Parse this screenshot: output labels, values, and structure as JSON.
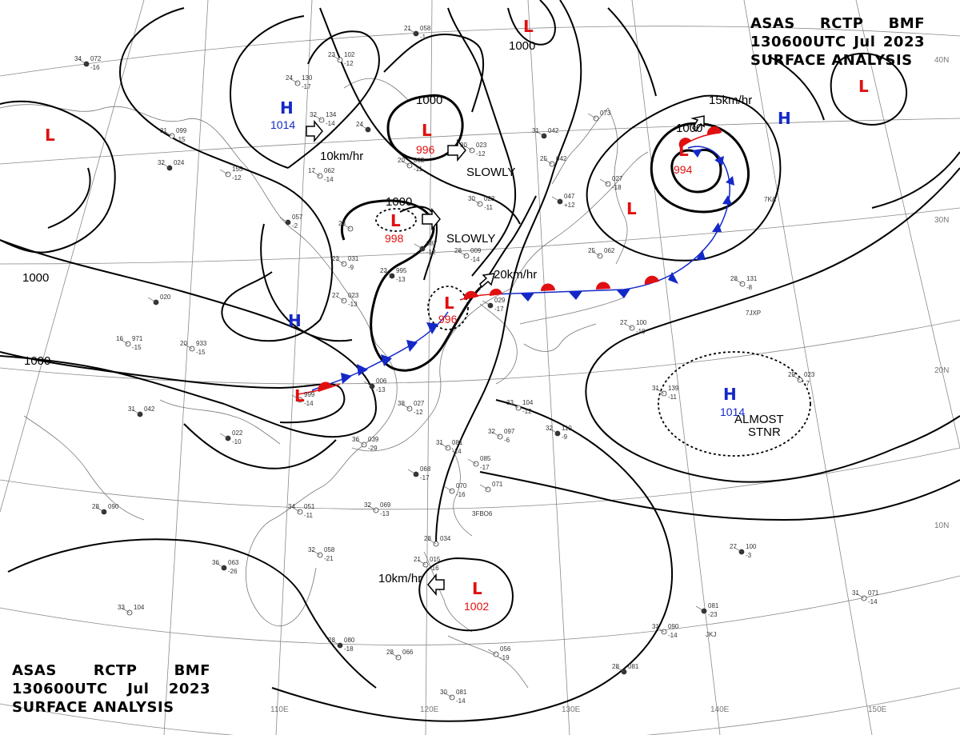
{
  "header": {
    "line1": [
      "ASAS",
      "RCTP",
      "BMF"
    ],
    "line2": [
      "130600UTC",
      "Jul",
      "2023"
    ],
    "line3": "SURFACE ANALYSIS"
  },
  "longitude_labels": [
    "110E",
    "120E",
    "130E",
    "140E",
    "150E"
  ],
  "latitude_labels": [
    "40N",
    "30N",
    "20N",
    "10N"
  ],
  "isobar_labels": [
    "1000",
    "1000",
    "1000",
    "1000",
    "1000"
  ],
  "systems": [
    {
      "type": "L",
      "pressure": "996"
    },
    {
      "type": "L",
      "pressure": "998"
    },
    {
      "type": "L",
      "pressure": "996"
    },
    {
      "type": "L",
      "pressure": "994"
    },
    {
      "type": "L",
      "pressure": "1002"
    },
    {
      "type": "L",
      "pressure": ""
    },
    {
      "type": "L",
      "pressure": ""
    },
    {
      "type": "L",
      "pressure": ""
    },
    {
      "type": "L",
      "pressure": ""
    },
    {
      "type": "L",
      "pressure": ""
    },
    {
      "type": "H",
      "pressure": "1014"
    },
    {
      "type": "H",
      "pressure": ""
    },
    {
      "type": "H",
      "pressure": ""
    },
    {
      "type": "H",
      "pressure": "1014"
    }
  ],
  "motions": [
    "SLOWLY",
    "SLOWLY",
    "20km/hr",
    "15km/hr",
    "10km/hr",
    "10km/hr",
    "ALMOST",
    "STNR"
  ],
  "station_plots": [
    {
      "t": "34",
      "p": "072",
      "d": "-16"
    },
    {
      "t": "23",
      "p": "102",
      "d": "-12"
    },
    {
      "t": "24",
      "p": "130",
      "d": "-17"
    },
    {
      "t": "21",
      "p": "058",
      "d": "-1"
    },
    {
      "t": "31",
      "p": "099",
      "d": "-15"
    },
    {
      "t": "32",
      "p": "134",
      "d": "-14"
    },
    {
      "t": "24",
      "p": "",
      "d": ""
    },
    {
      "t": "30",
      "p": "023",
      "d": "-12"
    },
    {
      "t": "20",
      "p": "002",
      "d": "-11"
    },
    {
      "t": "31",
      "p": "042",
      "d": ""
    },
    {
      "t": "25",
      "p": "042",
      "d": ""
    },
    {
      "t": "",
      "p": "073",
      "d": ""
    },
    {
      "t": "32",
      "p": "024",
      "d": ""
    },
    {
      "t": "",
      "p": "155",
      "d": "-12"
    },
    {
      "t": "17",
      "p": "062",
      "d": "-14"
    },
    {
      "t": "",
      "p": "057",
      "d": "-2"
    },
    {
      "t": "30",
      "p": "023",
      "d": "-11"
    },
    {
      "t": "28",
      "p": "",
      "d": ""
    },
    {
      "t": "",
      "p": "047",
      "d": "+12"
    },
    {
      "t": "",
      "p": "027",
      "d": "-18"
    },
    {
      "t": "23",
      "p": "031",
      "d": "-9"
    },
    {
      "t": "",
      "p": "987",
      "d": "-12"
    },
    {
      "t": "28",
      "p": "009",
      "d": "-14"
    },
    {
      "t": "25",
      "p": "062",
      "d": ""
    },
    {
      "t": "23",
      "p": "995",
      "d": "-13"
    },
    {
      "t": "27",
      "p": "023",
      "d": "-13"
    },
    {
      "t": "28",
      "p": "131",
      "d": "-8"
    },
    {
      "t": "",
      "p": "020",
      "d": ""
    },
    {
      "t": "16",
      "p": "971",
      "d": "-15"
    },
    {
      "t": "20",
      "p": "933",
      "d": "-15"
    },
    {
      "t": "",
      "p": "029",
      "d": "-17"
    },
    {
      "t": "27",
      "p": "100",
      "d": "-10"
    },
    {
      "t": "",
      "p": "999",
      "d": "-14"
    },
    {
      "t": "",
      "p": "006",
      "d": "-13"
    },
    {
      "t": "31",
      "p": "139",
      "d": "-11"
    },
    {
      "t": "29",
      "p": "023",
      "d": "-7"
    },
    {
      "t": "31",
      "p": "042",
      "d": ""
    },
    {
      "t": "38",
      "p": "027",
      "d": "-12"
    },
    {
      "t": "33",
      "p": "104",
      "d": "-12"
    },
    {
      "t": "",
      "p": "022",
      "d": "-10"
    },
    {
      "t": "36",
      "p": "039",
      "d": "-29"
    },
    {
      "t": "32",
      "p": "097",
      "d": "-6"
    },
    {
      "t": "32",
      "p": "110",
      "d": "-9"
    },
    {
      "t": "31",
      "p": "081",
      "d": "-14"
    },
    {
      "t": "",
      "p": "085",
      "d": "-17"
    },
    {
      "t": "",
      "p": "068",
      "d": "-17"
    },
    {
      "t": "",
      "p": "070",
      "d": "-16"
    },
    {
      "t": "",
      "p": "071",
      "d": ""
    },
    {
      "t": "28",
      "p": "090",
      "d": ""
    },
    {
      "t": "34",
      "p": "051",
      "d": "-11"
    },
    {
      "t": "32",
      "p": "069",
      "d": "-13"
    },
    {
      "t": "36",
      "p": "063",
      "d": "-26"
    },
    {
      "t": "32",
      "p": "058",
      "d": "-21"
    },
    {
      "t": "28",
      "p": "034",
      "d": ""
    },
    {
      "t": "27",
      "p": "100",
      "d": "-3"
    },
    {
      "t": "21",
      "p": "015",
      "d": "-16"
    },
    {
      "t": "33",
      "p": "104",
      "d": ""
    },
    {
      "t": "",
      "p": "081",
      "d": "-23"
    },
    {
      "t": "31",
      "p": "071",
      "d": "-14"
    },
    {
      "t": "31",
      "p": "090",
      "d": "-14"
    },
    {
      "t": "28",
      "p": "080",
      "d": "-18"
    },
    {
      "t": "",
      "p": "056",
      "d": "-19"
    },
    {
      "t": "28",
      "p": "066",
      "d": ""
    },
    {
      "t": "28",
      "p": "081",
      "d": ""
    },
    {
      "t": "30",
      "p": "081",
      "d": "-14"
    }
  ],
  "station_ids": [
    "7JXP",
    "3FBO6",
    "JKJ",
    "7KA"
  ]
}
